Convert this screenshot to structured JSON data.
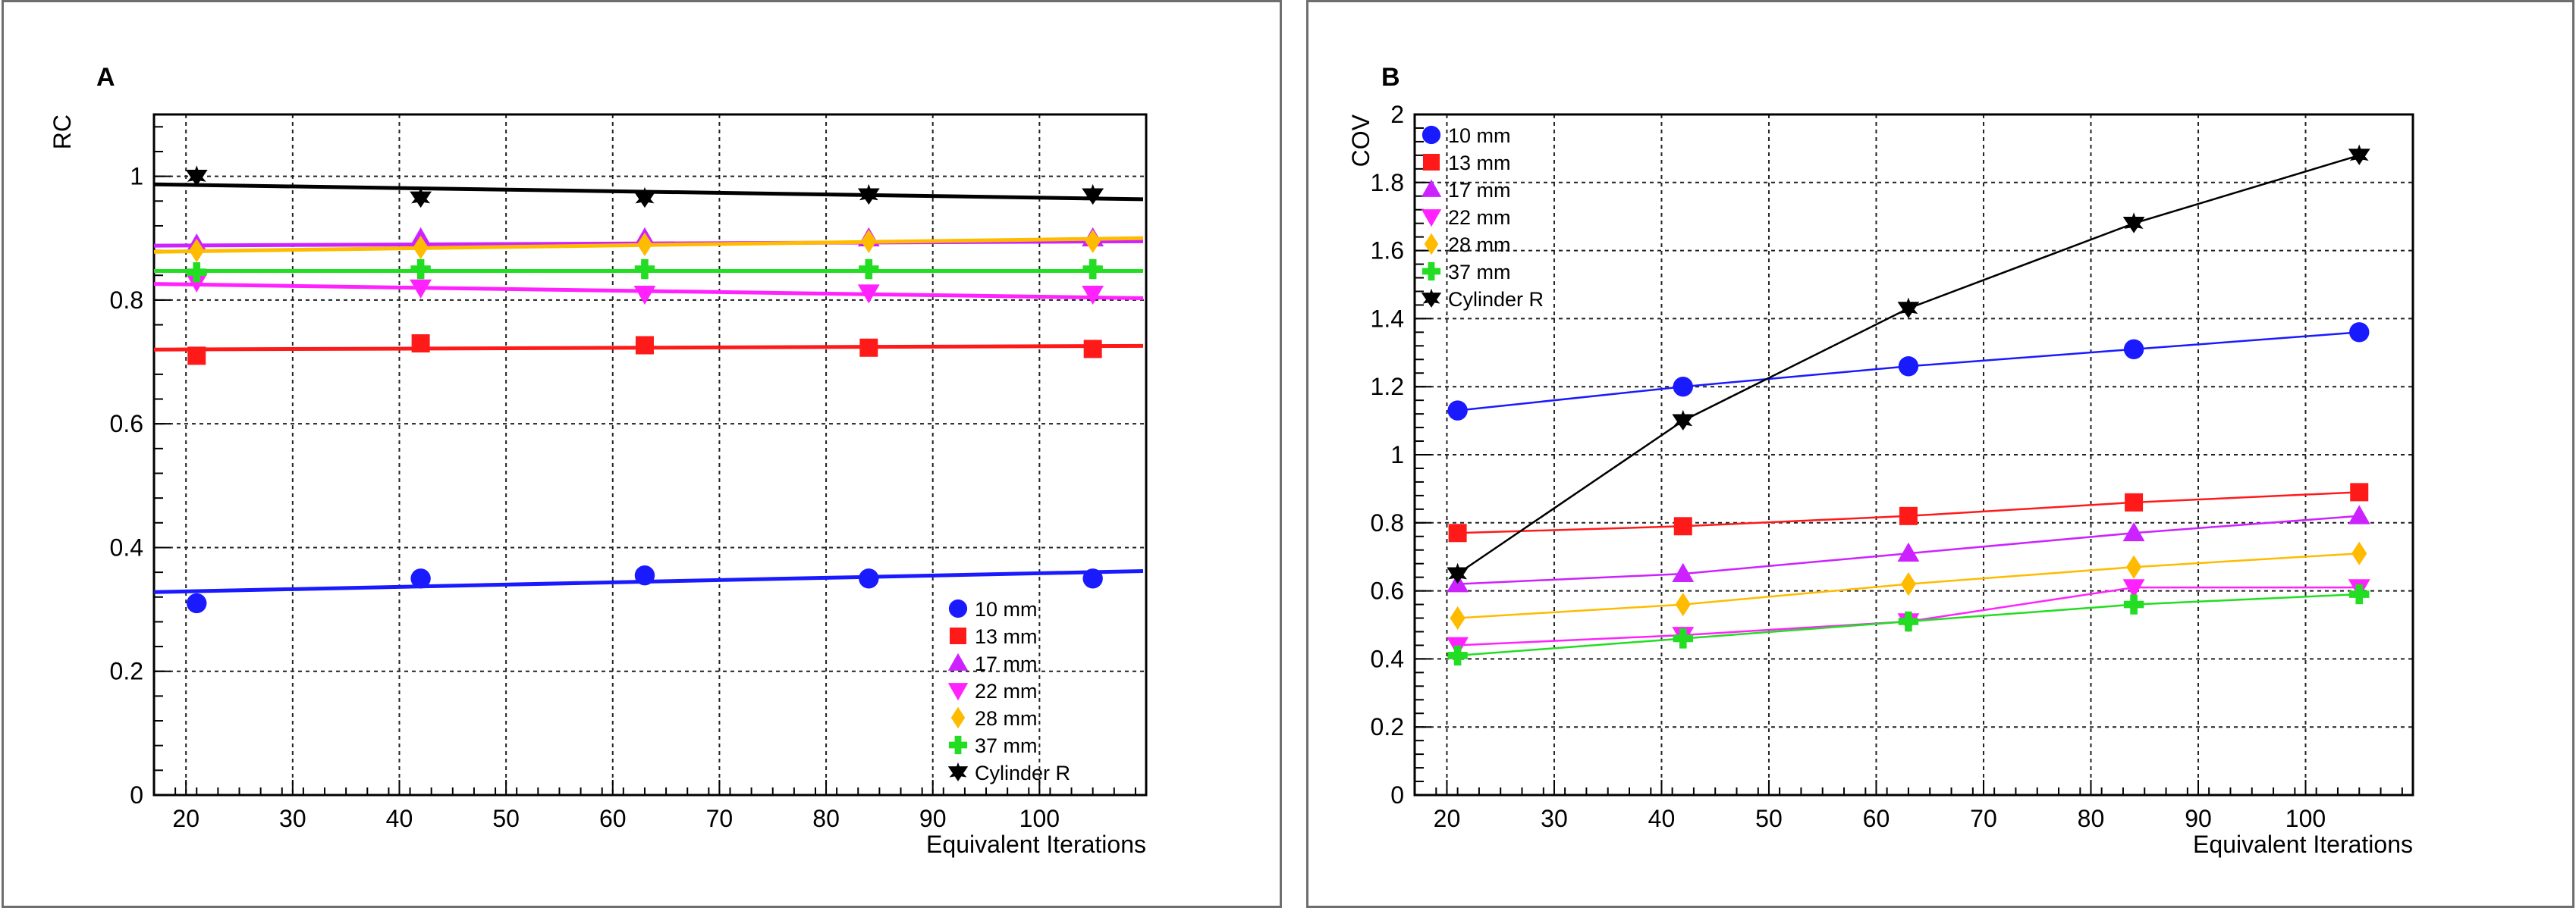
{
  "chart_data": [
    {
      "type": "scatter",
      "panel_label": "A",
      "xlabel": "Equivalent Iterations",
      "ylabel": "RC",
      "xlim": [
        17,
        110
      ],
      "ylim": [
        0,
        1.1
      ],
      "xticks": [
        20,
        30,
        40,
        50,
        60,
        70,
        80,
        90,
        100
      ],
      "yticks": [
        0,
        0.2,
        0.4,
        0.6,
        0.8,
        1
      ],
      "ytick_labels": [
        "0",
        "0.2",
        "0.4",
        "0.6",
        "0.8",
        "1"
      ],
      "grid": true,
      "legend_position": "bottom-right",
      "x": [
        21,
        42,
        63,
        84,
        105
      ],
      "series": [
        {
          "name": "10 mm",
          "color": "#1a1aff",
          "marker": "circle",
          "values": [
            0.31,
            0.35,
            0.355,
            0.35,
            0.35
          ],
          "fit": [
            0.328,
            0.362
          ]
        },
        {
          "name": "13 mm",
          "color": "#ff1a1a",
          "marker": "square",
          "values": [
            0.71,
            0.73,
            0.727,
            0.723,
            0.721
          ],
          "fit": [
            0.72,
            0.726
          ]
        },
        {
          "name": "17 mm",
          "color": "#cc22ff",
          "marker": "triangle-up",
          "values": [
            0.89,
            0.9,
            0.9,
            0.9,
            0.9
          ],
          "fit": [
            0.888,
            0.895
          ]
        },
        {
          "name": "22 mm",
          "color": "#ff22ff",
          "marker": "triangle-down",
          "values": [
            0.83,
            0.82,
            0.81,
            0.812,
            0.81
          ],
          "fit": [
            0.826,
            0.803
          ]
        },
        {
          "name": "28 mm",
          "color": "#ffbb00",
          "marker": "diamond",
          "values": [
            0.88,
            0.885,
            0.89,
            0.895,
            0.895
          ],
          "fit": [
            0.878,
            0.9
          ]
        },
        {
          "name": "37 mm",
          "color": "#22dd22",
          "marker": "cross",
          "values": [
            0.845,
            0.85,
            0.85,
            0.85,
            0.85
          ],
          "fit": [
            0.847,
            0.847
          ]
        },
        {
          "name": "Cylinder R",
          "color": "#000000",
          "marker": "star",
          "values": [
            1.0,
            0.965,
            0.965,
            0.97,
            0.97
          ],
          "fit": [
            0.987,
            0.963
          ]
        }
      ]
    },
    {
      "type": "line",
      "panel_label": "B",
      "xlabel": "Equivalent Iterations",
      "ylabel": "COV",
      "xlim": [
        17,
        110
      ],
      "ylim": [
        0,
        2
      ],
      "xticks": [
        20,
        30,
        40,
        50,
        60,
        70,
        80,
        90,
        100
      ],
      "yticks": [
        0,
        0.2,
        0.4,
        0.6,
        0.8,
        1,
        1.2,
        1.4,
        1.6,
        1.8,
        2
      ],
      "ytick_labels": [
        "0",
        "0.2",
        "0.4",
        "0.6",
        "0.8",
        "1",
        "1.2",
        "1.4",
        "1.6",
        "1.8",
        "2"
      ],
      "grid": true,
      "legend_position": "top-left",
      "x": [
        21,
        42,
        63,
        84,
        105
      ],
      "series": [
        {
          "name": "10 mm",
          "color": "#1a1aff",
          "marker": "circle",
          "values": [
            1.13,
            1.2,
            1.26,
            1.31,
            1.36
          ]
        },
        {
          "name": "13 mm",
          "color": "#ff1a1a",
          "marker": "square",
          "values": [
            0.77,
            0.79,
            0.82,
            0.86,
            0.89
          ]
        },
        {
          "name": "17 mm",
          "color": "#cc22ff",
          "marker": "triangle-up",
          "values": [
            0.62,
            0.65,
            0.71,
            0.77,
            0.82
          ]
        },
        {
          "name": "22 mm",
          "color": "#ff22ff",
          "marker": "triangle-down",
          "values": [
            0.44,
            0.47,
            0.51,
            0.61,
            0.61
          ]
        },
        {
          "name": "28 mm",
          "color": "#ffbb00",
          "marker": "diamond",
          "values": [
            0.52,
            0.56,
            0.62,
            0.67,
            0.71
          ]
        },
        {
          "name": "37 mm",
          "color": "#22dd22",
          "marker": "cross",
          "values": [
            0.41,
            0.46,
            0.51,
            0.56,
            0.59
          ]
        },
        {
          "name": "Cylinder R",
          "color": "#000000",
          "marker": "star",
          "values": [
            0.65,
            1.1,
            1.43,
            1.68,
            1.88
          ]
        }
      ]
    }
  ]
}
